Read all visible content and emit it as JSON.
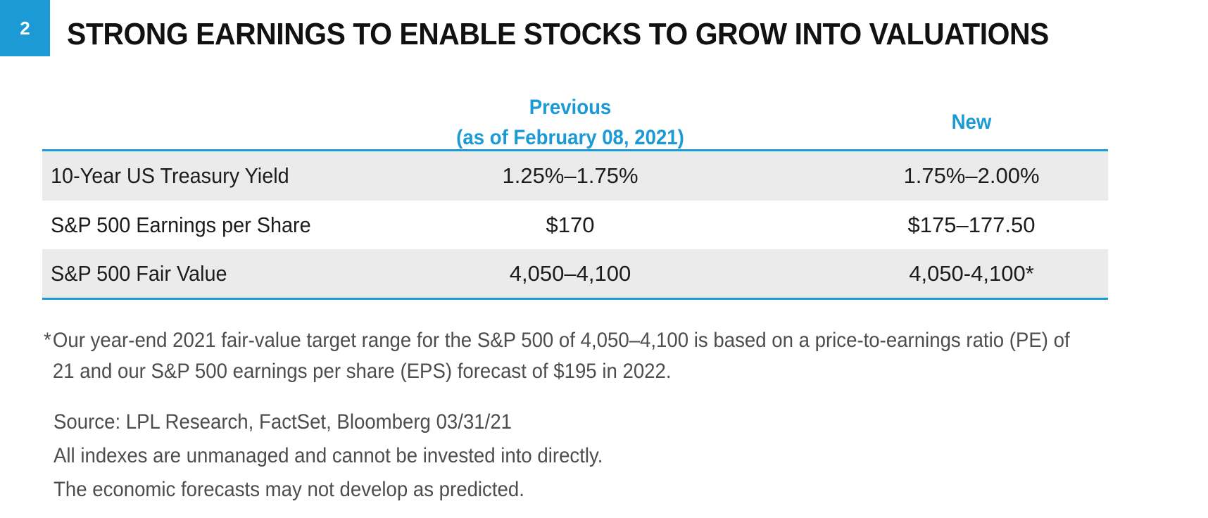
{
  "figure": {
    "number": "2",
    "title": "STRONG EARNINGS TO ENABLE STOCKS TO GROW INTO VALUATIONS"
  },
  "table": {
    "columns": {
      "previous_line1": "Previous",
      "previous_line2": "(as of February 08, 2021)",
      "new": "New"
    },
    "rows": [
      {
        "label": "10-Year US Treasury Yield",
        "previous": "1.25%–1.75%",
        "new": "1.75%–2.00%"
      },
      {
        "label": "S&P 500 Earnings per Share",
        "previous": "$170",
        "new": "$175–177.50"
      },
      {
        "label": "S&P 500 Fair Value",
        "previous": "4,050–4,100",
        "new": "4,050-4,100*"
      }
    ]
  },
  "footnote": {
    "marker": "*",
    "text": "Our year-end 2021 fair-value target range for the S&P 500 of 4,050–4,100 is based on a price-to-earnings ratio (PE) of 21 and our S&P 500 earnings per share (EPS) forecast of $195 in 2022."
  },
  "disclosures": [
    "Source: LPL Research, FactSet, Bloomberg  03/31/21",
    "All indexes are unmanaged and cannot be invested into directly.",
    "The economic forecasts may not develop as predicted."
  ],
  "colors": {
    "accent": "#1b9ad6",
    "row_shade": "#ebebeb"
  }
}
